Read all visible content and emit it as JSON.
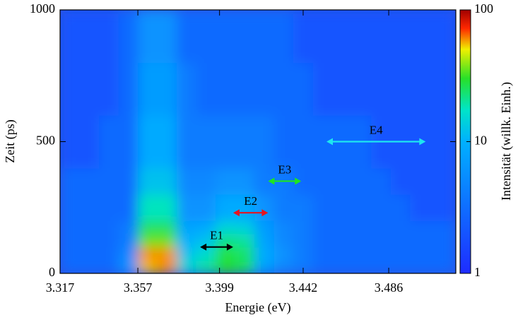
{
  "chart_data": {
    "type": "heatmap",
    "xlabel": "Energie (eV)",
    "ylabel": "Zeit (ps)",
    "colorbar_label": "Intensität (willk. Einh.)",
    "xlim": [
      3.317,
      3.5205
    ],
    "xticks": [
      3.317,
      3.357,
      3.399,
      3.442,
      3.486
    ],
    "ylim": [
      0,
      1000
    ],
    "yticks": [
      0,
      500,
      1000
    ],
    "clim": [
      1,
      100
    ],
    "cticks": [
      1,
      10,
      100
    ],
    "color_scale": "log",
    "x_edges": [
      3.317,
      3.327,
      3.337,
      3.347,
      3.357,
      3.367,
      3.377,
      3.387,
      3.397,
      3.407,
      3.417,
      3.427,
      3.437,
      3.447,
      3.457,
      3.467,
      3.477,
      3.487,
      3.497,
      3.507,
      3.5205
    ],
    "y_edges": [
      0,
      50,
      100,
      150,
      200,
      300,
      400,
      600,
      800,
      1000
    ],
    "z": [
      [
        3,
        3,
        3,
        6,
        55,
        60,
        15,
        20,
        30,
        25,
        8,
        5,
        4,
        3,
        3,
        3,
        3,
        3,
        3,
        3
      ],
      [
        3,
        3,
        3,
        5,
        60,
        60,
        12,
        16,
        28,
        24,
        9,
        6,
        4,
        3,
        3,
        3,
        3,
        3,
        3,
        3
      ],
      [
        3,
        3,
        3,
        4,
        35,
        35,
        10,
        12,
        22,
        20,
        8,
        5,
        4,
        3,
        3,
        3,
        3,
        3,
        3,
        3
      ],
      [
        3,
        3,
        3,
        4,
        25,
        25,
        8,
        9,
        15,
        14,
        7,
        5,
        4,
        3,
        3,
        3,
        3,
        3,
        3,
        3
      ],
      [
        3,
        3,
        3,
        3,
        18,
        18,
        6,
        6,
        9,
        9,
        6,
        4,
        4,
        3,
        3,
        3,
        3,
        3,
        2,
        2
      ],
      [
        3,
        3,
        3,
        3,
        12,
        12,
        5,
        5,
        6,
        6,
        4,
        4,
        3,
        3,
        3,
        3,
        3,
        2,
        2,
        2
      ],
      [
        2,
        2,
        3,
        3,
        9,
        9,
        4,
        4,
        4,
        4,
        4,
        3,
        3,
        3,
        3,
        3,
        2,
        2,
        2,
        2
      ],
      [
        2,
        2,
        2,
        3,
        7,
        7,
        4,
        3,
        3,
        3,
        3,
        3,
        3,
        2,
        2,
        2,
        2,
        2,
        2,
        2
      ],
      [
        2,
        2,
        2,
        3,
        6,
        6,
        3,
        3,
        3,
        3,
        3,
        3,
        2,
        2,
        2,
        2,
        2,
        2,
        2,
        2
      ]
    ],
    "annotations": [
      {
        "text": "E1",
        "x": [
          3.389,
          3.406
        ],
        "y": 100,
        "color": "#000000"
      },
      {
        "text": "E2",
        "x": [
          3.406,
          3.424
        ],
        "y": 230,
        "color": "#e8141e"
      },
      {
        "text": "E3",
        "x": [
          3.424,
          3.441
        ],
        "y": 350,
        "color": "#1ee61e"
      },
      {
        "text": "E4",
        "x": [
          3.454,
          3.505
        ],
        "y": 500,
        "color": "#1ee6f0"
      }
    ]
  }
}
